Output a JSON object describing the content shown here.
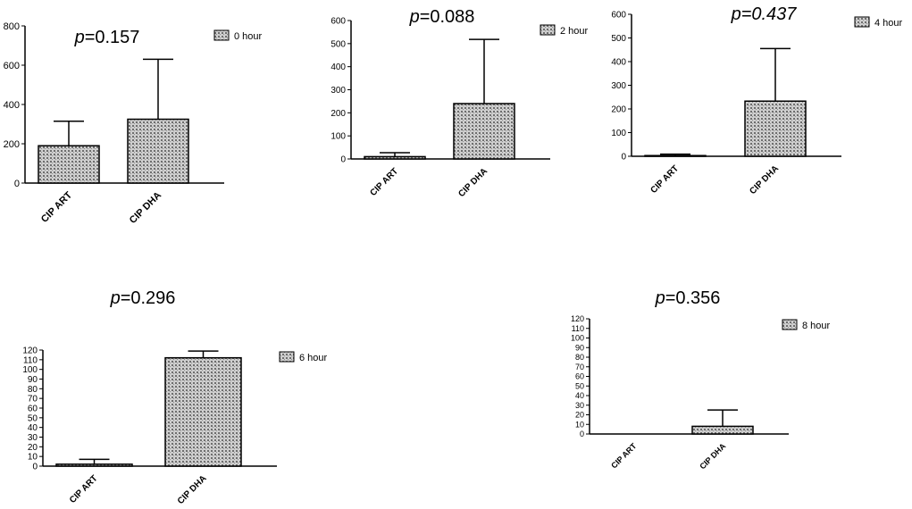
{
  "chart_data": [
    {
      "type": "bar",
      "title_prefix": "p",
      "title_value": "=0.157",
      "title_italic_all": false,
      "legend": "0 hour",
      "categories": [
        "CIP ART",
        "CIP DHA"
      ],
      "values": [
        190,
        325
      ],
      "error_upper": [
        315,
        630
      ],
      "yticks": [
        0,
        200,
        400,
        600,
        800
      ],
      "ylim": [
        0,
        800
      ]
    },
    {
      "type": "bar",
      "title_prefix": "p",
      "title_value": "=0.088",
      "title_italic_all": false,
      "legend": "2 hour",
      "categories": [
        "CIP ART",
        "CIP DHA"
      ],
      "values": [
        10,
        240
      ],
      "error_upper": [
        27,
        518
      ],
      "yticks": [
        0,
        100,
        200,
        300,
        400,
        500,
        600
      ],
      "ylim": [
        0,
        600
      ]
    },
    {
      "type": "bar",
      "title_prefix": "p",
      "title_value": "=0.437",
      "title_italic_all": true,
      "legend": "4 hour",
      "categories": [
        "CIP ART",
        "CIP DHA"
      ],
      "values": [
        3,
        233
      ],
      "error_upper": [
        9,
        455
      ],
      "yticks": [
        0,
        100,
        200,
        300,
        400,
        500,
        600
      ],
      "ylim": [
        0,
        600
      ]
    },
    {
      "type": "bar",
      "title_prefix": "p",
      "title_value": "=0.296",
      "title_italic_all": false,
      "legend": "6 hour",
      "categories": [
        "CIP ART",
        "CIP DHA"
      ],
      "values": [
        2,
        112
      ],
      "error_upper": [
        7,
        119
      ],
      "yticks": [
        0,
        10,
        20,
        30,
        40,
        50,
        60,
        70,
        80,
        90,
        100,
        110,
        120
      ],
      "ylim": [
        0,
        120
      ]
    },
    {
      "type": "bar",
      "title_prefix": "p",
      "title_value": "=0.356",
      "title_italic_all": false,
      "legend": "8 hour",
      "categories": [
        "CIP ART",
        "CIP DHA"
      ],
      "values": [
        0,
        8
      ],
      "error_upper": [
        0,
        25
      ],
      "yticks": [
        0,
        10,
        20,
        30,
        40,
        50,
        60,
        70,
        80,
        90,
        100,
        110,
        120
      ],
      "ylim": [
        0,
        120
      ]
    }
  ]
}
